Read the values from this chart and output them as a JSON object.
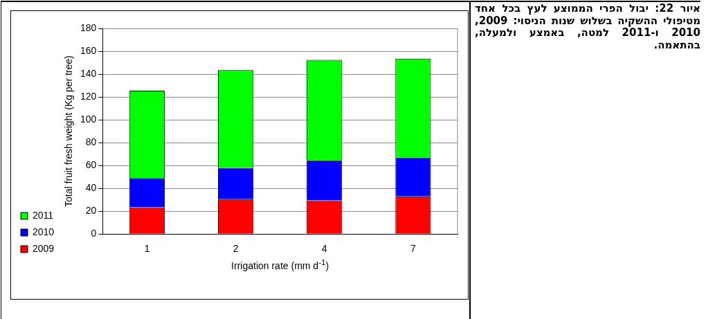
{
  "chart_data": {
    "type": "bar",
    "stacked": true,
    "categories": [
      "1",
      "2",
      "4",
      "7"
    ],
    "series": [
      {
        "name": "2009",
        "color": "#ff0000",
        "values": [
          23.5,
          30.5,
          29.5,
          33
        ]
      },
      {
        "name": "2010",
        "color": "#0000ff",
        "values": [
          25.5,
          27.5,
          35,
          34
        ]
      },
      {
        "name": "2011",
        "color": "#00ff00",
        "values": [
          76.5,
          85.5,
          88,
          86.5
        ]
      }
    ],
    "xlabel": "Irrigation rate (mm d$^{-1}$)",
    "ylabel": "Total fruit fresh weight (Kg per tree)",
    "ylim": [
      0,
      180
    ],
    "yticks": [
      0,
      20,
      40,
      60,
      80,
      100,
      120,
      140,
      160,
      180
    ],
    "grid": "y",
    "legend": "bottom left",
    "annotations": [
      "איור 22: יבול הפרי הממוצע לעץ בכל אחד מטיפולי ההשקיה בשלוש שנות הניסוי: 2009, 2010 ו-2011 למטה, באמצע ולמעלה, בהתאמה."
    ]
  }
}
